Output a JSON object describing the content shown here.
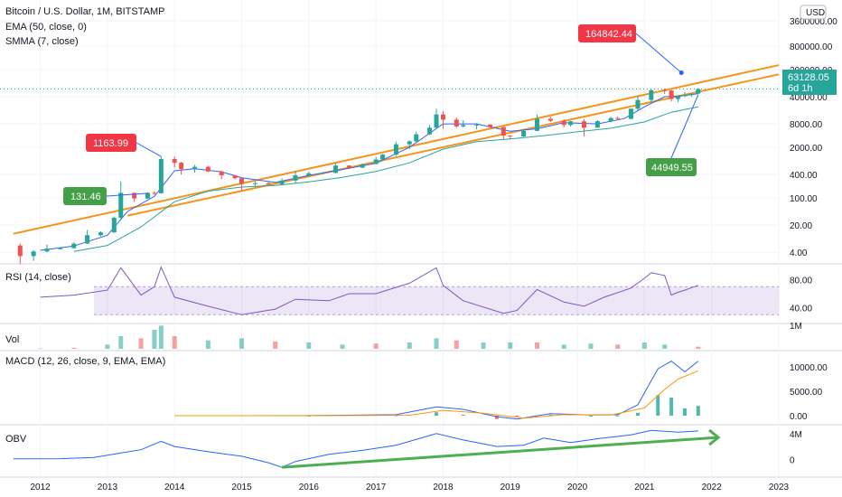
{
  "header": {
    "symbol": "Bitcoin / U.S. Dollar, 1M, BITSTAMP",
    "ema_label": "EMA (50, close, 0)",
    "smma_label": "SMMA (7, close)"
  },
  "price_axis": {
    "currency": "USD",
    "ticks": [
      "3600000.00",
      "800000.00",
      "200000.00",
      "40000.00",
      "8000.00",
      "2000.00",
      "400.00",
      "100.00",
      "20.00",
      "4.00"
    ],
    "last_price": "63128.05",
    "countdown": "6d 1h",
    "scale": "log"
  },
  "annotations": {
    "upper_target": "164842.44",
    "lower_target": "44949.55",
    "high_2013": "1163.99",
    "mid_2013": "131.46"
  },
  "panes": {
    "rsi": {
      "title": "RSI (14, close)",
      "ticks": [
        "80.00",
        "40.00"
      ]
    },
    "vol": {
      "title": "Vol",
      "ticks": [
        "1M"
      ]
    },
    "macd": {
      "title": "MACD (12, 26, close, 9, EMA, EMA)",
      "ticks": [
        "10000.00",
        "5000.00",
        "0.00"
      ]
    },
    "obv": {
      "title": "OBV",
      "ticks": [
        "4M",
        "0"
      ]
    }
  },
  "x_axis": {
    "labels": [
      "2012",
      "2013",
      "2014",
      "2015",
      "2016",
      "2017",
      "2018",
      "2019",
      "2020",
      "2021",
      "2022",
      "2023"
    ]
  },
  "colors": {
    "up": "#26a69a",
    "down": "#ef5350",
    "channel": "#f7931a",
    "ema": "#26a69a",
    "smma": "#2962ff",
    "rsi": "#7e57c2",
    "macd": "#2962ff",
    "signal": "#ff9800",
    "obv": "#2962ff",
    "obv_trend": "#4caf50",
    "red_tag": "#f23645",
    "green_tag": "#43a047",
    "blue_tag": "#2962ff"
  },
  "chart_data": {
    "type": "candlestick",
    "scale": "log",
    "x_unit": "year",
    "candles": [
      {
        "x": 2011.7,
        "open": 6.0,
        "high": 6.8,
        "low": 2.0,
        "close": 3.2
      },
      {
        "x": 2011.9,
        "open": 3.2,
        "high": 4.5,
        "low": 2.4,
        "close": 4.2
      },
      {
        "x": 2012.1,
        "open": 4.2,
        "high": 6.3,
        "low": 4.0,
        "close": 5.0
      },
      {
        "x": 2012.3,
        "open": 5.0,
        "high": 5.5,
        "low": 4.7,
        "close": 5.1
      },
      {
        "x": 2012.5,
        "open": 5.1,
        "high": 7.2,
        "low": 5.0,
        "close": 6.7
      },
      {
        "x": 2012.7,
        "open": 6.7,
        "high": 15.0,
        "low": 6.5,
        "close": 11.0
      },
      {
        "x": 2012.9,
        "open": 11.0,
        "high": 13.8,
        "low": 10.3,
        "close": 13.0
      },
      {
        "x": 2013.1,
        "open": 13.0,
        "high": 33.0,
        "low": 12.8,
        "close": 31.0
      },
      {
        "x": 2013.2,
        "open": 31.0,
        "high": 266.0,
        "low": 30.0,
        "close": 135.0
      },
      {
        "x": 2013.4,
        "open": 135.0,
        "high": 135.0,
        "low": 79.0,
        "close": 97.0
      },
      {
        "x": 2013.6,
        "open": 97.0,
        "high": 140.0,
        "low": 95.0,
        "close": 135.0
      },
      {
        "x": 2013.7,
        "open": 135.0,
        "high": 150.0,
        "low": 120.0,
        "close": 131.46
      },
      {
        "x": 2013.8,
        "open": 131.46,
        "high": 1163.99,
        "low": 130.0,
        "close": 1000.0
      },
      {
        "x": 2014.0,
        "open": 1000.0,
        "high": 1160.0,
        "low": 600.0,
        "close": 800.0
      },
      {
        "x": 2014.1,
        "open": 800.0,
        "high": 850.0,
        "low": 400.0,
        "close": 550.0
      },
      {
        "x": 2014.3,
        "open": 550.0,
        "high": 700.0,
        "low": 450.0,
        "close": 630.0
      },
      {
        "x": 2014.5,
        "open": 630.0,
        "high": 680.0,
        "low": 460.0,
        "close": 480.0
      },
      {
        "x": 2014.7,
        "open": 480.0,
        "high": 500.0,
        "low": 300.0,
        "close": 380.0
      },
      {
        "x": 2014.9,
        "open": 380.0,
        "high": 390.0,
        "low": 300.0,
        "close": 320.0
      },
      {
        "x": 2015.0,
        "open": 320.0,
        "high": 330.0,
        "low": 160.0,
        "close": 230.0
      },
      {
        "x": 2015.2,
        "open": 230.0,
        "high": 270.0,
        "low": 200.0,
        "close": 240.0
      },
      {
        "x": 2015.4,
        "open": 240.0,
        "high": 260.0,
        "low": 215.0,
        "close": 225.0
      },
      {
        "x": 2015.6,
        "open": 225.0,
        "high": 320.0,
        "low": 210.0,
        "close": 280.0
      },
      {
        "x": 2015.8,
        "open": 280.0,
        "high": 500.0,
        "low": 230.0,
        "close": 380.0
      },
      {
        "x": 2016.0,
        "open": 380.0,
        "high": 470.0,
        "low": 350.0,
        "close": 430.0
      },
      {
        "x": 2016.2,
        "open": 430.0,
        "high": 460.0,
        "low": 410.0,
        "close": 440.0
      },
      {
        "x": 2016.4,
        "open": 440.0,
        "high": 780.0,
        "low": 430.0,
        "close": 680.0
      },
      {
        "x": 2016.6,
        "open": 680.0,
        "high": 690.0,
        "low": 550.0,
        "close": 600.0
      },
      {
        "x": 2016.8,
        "open": 600.0,
        "high": 760.0,
        "low": 590.0,
        "close": 740.0
      },
      {
        "x": 2017.0,
        "open": 740.0,
        "high": 1150.0,
        "low": 730.0,
        "close": 970.0
      },
      {
        "x": 2017.1,
        "open": 970.0,
        "high": 1350.0,
        "low": 900.0,
        "close": 1300.0
      },
      {
        "x": 2017.3,
        "open": 1300.0,
        "high": 2800.0,
        "low": 1200.0,
        "close": 2400.0
      },
      {
        "x": 2017.5,
        "open": 2400.0,
        "high": 3000.0,
        "low": 1800.0,
        "close": 2850.0
      },
      {
        "x": 2017.6,
        "open": 2850.0,
        "high": 5000.0,
        "low": 2700.0,
        "close": 4300.0
      },
      {
        "x": 2017.8,
        "open": 4300.0,
        "high": 7600.0,
        "low": 4100.0,
        "close": 6400.0
      },
      {
        "x": 2017.9,
        "open": 6400.0,
        "high": 19600.0,
        "low": 6000.0,
        "close": 14000.0
      },
      {
        "x": 2018.0,
        "open": 14000.0,
        "high": 17000.0,
        "low": 6000.0,
        "close": 10300.0
      },
      {
        "x": 2018.2,
        "open": 10300.0,
        "high": 11700.0,
        "low": 6400.0,
        "close": 6900.0
      },
      {
        "x": 2018.3,
        "open": 6900.0,
        "high": 9900.0,
        "low": 6500.0,
        "close": 7500.0
      },
      {
        "x": 2018.5,
        "open": 7500.0,
        "high": 8400.0,
        "low": 5800.0,
        "close": 7700.0
      },
      {
        "x": 2018.7,
        "open": 7700.0,
        "high": 7800.0,
        "low": 6200.0,
        "close": 6600.0
      },
      {
        "x": 2018.9,
        "open": 6600.0,
        "high": 6700.0,
        "low": 3200.0,
        "close": 4000.0
      },
      {
        "x": 2019.0,
        "open": 4000.0,
        "high": 4100.0,
        "low": 3300.0,
        "close": 3800.0
      },
      {
        "x": 2019.2,
        "open": 3800.0,
        "high": 5400.0,
        "low": 3700.0,
        "close": 5300.0
      },
      {
        "x": 2019.4,
        "open": 5300.0,
        "high": 13800.0,
        "low": 5200.0,
        "close": 10800.0
      },
      {
        "x": 2019.6,
        "open": 10800.0,
        "high": 12300.0,
        "low": 9000.0,
        "close": 9600.0
      },
      {
        "x": 2019.8,
        "open": 9600.0,
        "high": 10500.0,
        "low": 6500.0,
        "close": 7500.0
      },
      {
        "x": 2019.9,
        "open": 7500.0,
        "high": 9600.0,
        "low": 6800.0,
        "close": 9300.0
      },
      {
        "x": 2020.1,
        "open": 9300.0,
        "high": 10500.0,
        "low": 3800.0,
        "close": 6400.0
      },
      {
        "x": 2020.3,
        "open": 6400.0,
        "high": 10000.0,
        "low": 6300.0,
        "close": 9400.0
      },
      {
        "x": 2020.5,
        "open": 9400.0,
        "high": 12000.0,
        "low": 8900.0,
        "close": 11300.0
      },
      {
        "x": 2020.6,
        "open": 11300.0,
        "high": 12500.0,
        "low": 10000.0,
        "close": 10800.0
      },
      {
        "x": 2020.8,
        "open": 10800.0,
        "high": 19800.0,
        "low": 10500.0,
        "close": 19700.0
      },
      {
        "x": 2020.9,
        "open": 19700.0,
        "high": 41900.0,
        "low": 18000.0,
        "close": 33000.0
      },
      {
        "x": 2021.1,
        "open": 33000.0,
        "high": 61700.0,
        "low": 28800.0,
        "close": 58800.0
      },
      {
        "x": 2021.3,
        "open": 58800.0,
        "high": 64800.0,
        "low": 47000.0,
        "close": 57700.0
      },
      {
        "x": 2021.4,
        "open": 57700.0,
        "high": 59500.0,
        "low": 30000.0,
        "close": 35000.0
      },
      {
        "x": 2021.5,
        "open": 35000.0,
        "high": 41300.0,
        "low": 29300.0,
        "close": 41500.0
      },
      {
        "x": 2021.6,
        "open": 41500.0,
        "high": 52900.0,
        "low": 39400.0,
        "close": 43800.0
      },
      {
        "x": 2021.7,
        "open": 43800.0,
        "high": 48800.0,
        "low": 40000.0,
        "close": 48200.0
      },
      {
        "x": 2021.8,
        "open": 48200.0,
        "high": 66900.0,
        "low": 47000.0,
        "close": 63128.05
      }
    ],
    "smma": [
      [
        2012.0,
        4.5
      ],
      [
        2012.5,
        5.8
      ],
      [
        2013.0,
        11
      ],
      [
        2013.3,
        45
      ],
      [
        2013.7,
        110
      ],
      [
        2014.0,
        500
      ],
      [
        2014.3,
        560
      ],
      [
        2014.7,
        470
      ],
      [
        2015.0,
        330
      ],
      [
        2015.5,
        250
      ],
      [
        2016.0,
        380
      ],
      [
        2016.5,
        540
      ],
      [
        2017.0,
        780
      ],
      [
        2017.5,
        2000
      ],
      [
        2018.0,
        8000
      ],
      [
        2018.5,
        8000
      ],
      [
        2019.0,
        5200
      ],
      [
        2019.4,
        6000
      ],
      [
        2019.8,
        8600
      ],
      [
        2020.3,
        8000
      ],
      [
        2020.7,
        11000
      ],
      [
        2021.0,
        22000
      ],
      [
        2021.3,
        40000
      ],
      [
        2021.6,
        43000
      ],
      [
        2021.8,
        48000
      ]
    ],
    "ema": [
      [
        2012.5,
        4.2
      ],
      [
        2013.0,
        6
      ],
      [
        2013.5,
        18
      ],
      [
        2014.0,
        80
      ],
      [
        2014.5,
        150
      ],
      [
        2015.0,
        190
      ],
      [
        2015.5,
        210
      ],
      [
        2016.0,
        260
      ],
      [
        2016.5,
        340
      ],
      [
        2017.0,
        480
      ],
      [
        2017.5,
        800
      ],
      [
        2018.0,
        1800
      ],
      [
        2018.5,
        2800
      ],
      [
        2019.0,
        3300
      ],
      [
        2019.5,
        4000
      ],
      [
        2020.0,
        5000
      ],
      [
        2020.5,
        6200
      ],
      [
        2021.0,
        9000
      ],
      [
        2021.4,
        16000
      ],
      [
        2021.8,
        22000
      ]
    ],
    "channel_upper": [
      [
        2011.6,
        12
      ],
      [
        2023.0,
        260000
      ]
    ],
    "channel_lower": [
      [
        2013.3,
        35
      ],
      [
        2023.0,
        150000
      ]
    ],
    "rsi": [
      [
        2012.0,
        55
      ],
      [
        2012.5,
        58
      ],
      [
        2013.0,
        65
      ],
      [
        2013.2,
        97
      ],
      [
        2013.5,
        58
      ],
      [
        2013.7,
        70
      ],
      [
        2013.8,
        98
      ],
      [
        2014.0,
        55
      ],
      [
        2014.5,
        42
      ],
      [
        2015.0,
        30
      ],
      [
        2015.5,
        38
      ],
      [
        2015.8,
        52
      ],
      [
        2016.3,
        50
      ],
      [
        2016.6,
        60
      ],
      [
        2017.0,
        60
      ],
      [
        2017.5,
        75
      ],
      [
        2017.9,
        97
      ],
      [
        2018.0,
        72
      ],
      [
        2018.3,
        50
      ],
      [
        2018.9,
        32
      ],
      [
        2019.1,
        36
      ],
      [
        2019.4,
        66
      ],
      [
        2019.8,
        48
      ],
      [
        2020.1,
        42
      ],
      [
        2020.4,
        55
      ],
      [
        2020.8,
        68
      ],
      [
        2021.0,
        82
      ],
      [
        2021.1,
        90
      ],
      [
        2021.3,
        86
      ],
      [
        2021.4,
        58
      ],
      [
        2021.5,
        62
      ],
      [
        2021.6,
        65
      ],
      [
        2021.8,
        72
      ]
    ],
    "volume": [
      [
        2012.0,
        0.02
      ],
      [
        2012.5,
        0.05
      ],
      [
        2013.0,
        0.2
      ],
      [
        2013.2,
        0.6
      ],
      [
        2013.5,
        0.5
      ],
      [
        2013.7,
        0.9
      ],
      [
        2013.8,
        1.1
      ],
      [
        2014.0,
        0.6
      ],
      [
        2014.5,
        0.4
      ],
      [
        2015.0,
        0.5
      ],
      [
        2015.5,
        0.35
      ],
      [
        2016.0,
        0.3
      ],
      [
        2016.5,
        0.2
      ],
      [
        2017.0,
        0.25
      ],
      [
        2017.5,
        0.3
      ],
      [
        2017.9,
        0.5
      ],
      [
        2018.2,
        0.4
      ],
      [
        2018.6,
        0.3
      ],
      [
        2019.0,
        0.3
      ],
      [
        2019.4,
        0.3
      ],
      [
        2019.8,
        0.2
      ],
      [
        2020.2,
        0.25
      ],
      [
        2020.6,
        0.2
      ],
      [
        2021.0,
        0.3
      ],
      [
        2021.3,
        0.2
      ],
      [
        2021.8,
        0.1
      ]
    ],
    "macd": [
      [
        2014.0,
        0
      ],
      [
        2016.0,
        10
      ],
      [
        2017.3,
        200
      ],
      [
        2017.9,
        1800
      ],
      [
        2018.3,
        1300
      ],
      [
        2018.8,
        -200
      ],
      [
        2019.1,
        -700
      ],
      [
        2019.6,
        400
      ],
      [
        2020.2,
        150
      ],
      [
        2020.6,
        200
      ],
      [
        2020.9,
        2200
      ],
      [
        2021.2,
        9600
      ],
      [
        2021.4,
        11200
      ],
      [
        2021.6,
        9000
      ],
      [
        2021.8,
        11200
      ]
    ],
    "signal": [
      [
        2014.0,
        0
      ],
      [
        2016.0,
        5
      ],
      [
        2017.5,
        100
      ],
      [
        2018.0,
        1100
      ],
      [
        2018.6,
        500
      ],
      [
        2019.2,
        -500
      ],
      [
        2019.8,
        200
      ],
      [
        2020.5,
        150
      ],
      [
        2021.0,
        1600
      ],
      [
        2021.3,
        5400
      ],
      [
        2021.5,
        7500
      ],
      [
        2021.8,
        9200
      ]
    ],
    "obv": [
      [
        2011.6,
        0.1
      ],
      [
        2012.3,
        0.12
      ],
      [
        2012.8,
        0.3
      ],
      [
        2013.2,
        1.0
      ],
      [
        2013.5,
        1.5
      ],
      [
        2013.8,
        2.8
      ],
      [
        2014.0,
        2.0
      ],
      [
        2014.5,
        1.2
      ],
      [
        2015.0,
        0.5
      ],
      [
        2015.4,
        -0.5
      ],
      [
        2015.6,
        -1.2
      ],
      [
        2015.8,
        -0.3
      ],
      [
        2016.3,
        0.8
      ],
      [
        2016.8,
        1.4
      ],
      [
        2017.3,
        2.2
      ],
      [
        2017.9,
        4.0
      ],
      [
        2018.3,
        3.0
      ],
      [
        2018.8,
        2.0
      ],
      [
        2019.2,
        2.2
      ],
      [
        2019.5,
        3.3
      ],
      [
        2019.9,
        2.6
      ],
      [
        2020.3,
        3.2
      ],
      [
        2020.8,
        3.8
      ],
      [
        2021.1,
        4.5
      ],
      [
        2021.5,
        4.2
      ],
      [
        2021.8,
        4.4
      ]
    ],
    "obv_trend": [
      [
        2015.6,
        -1.2
      ],
      [
        2022.1,
        3.4
      ]
    ]
  }
}
